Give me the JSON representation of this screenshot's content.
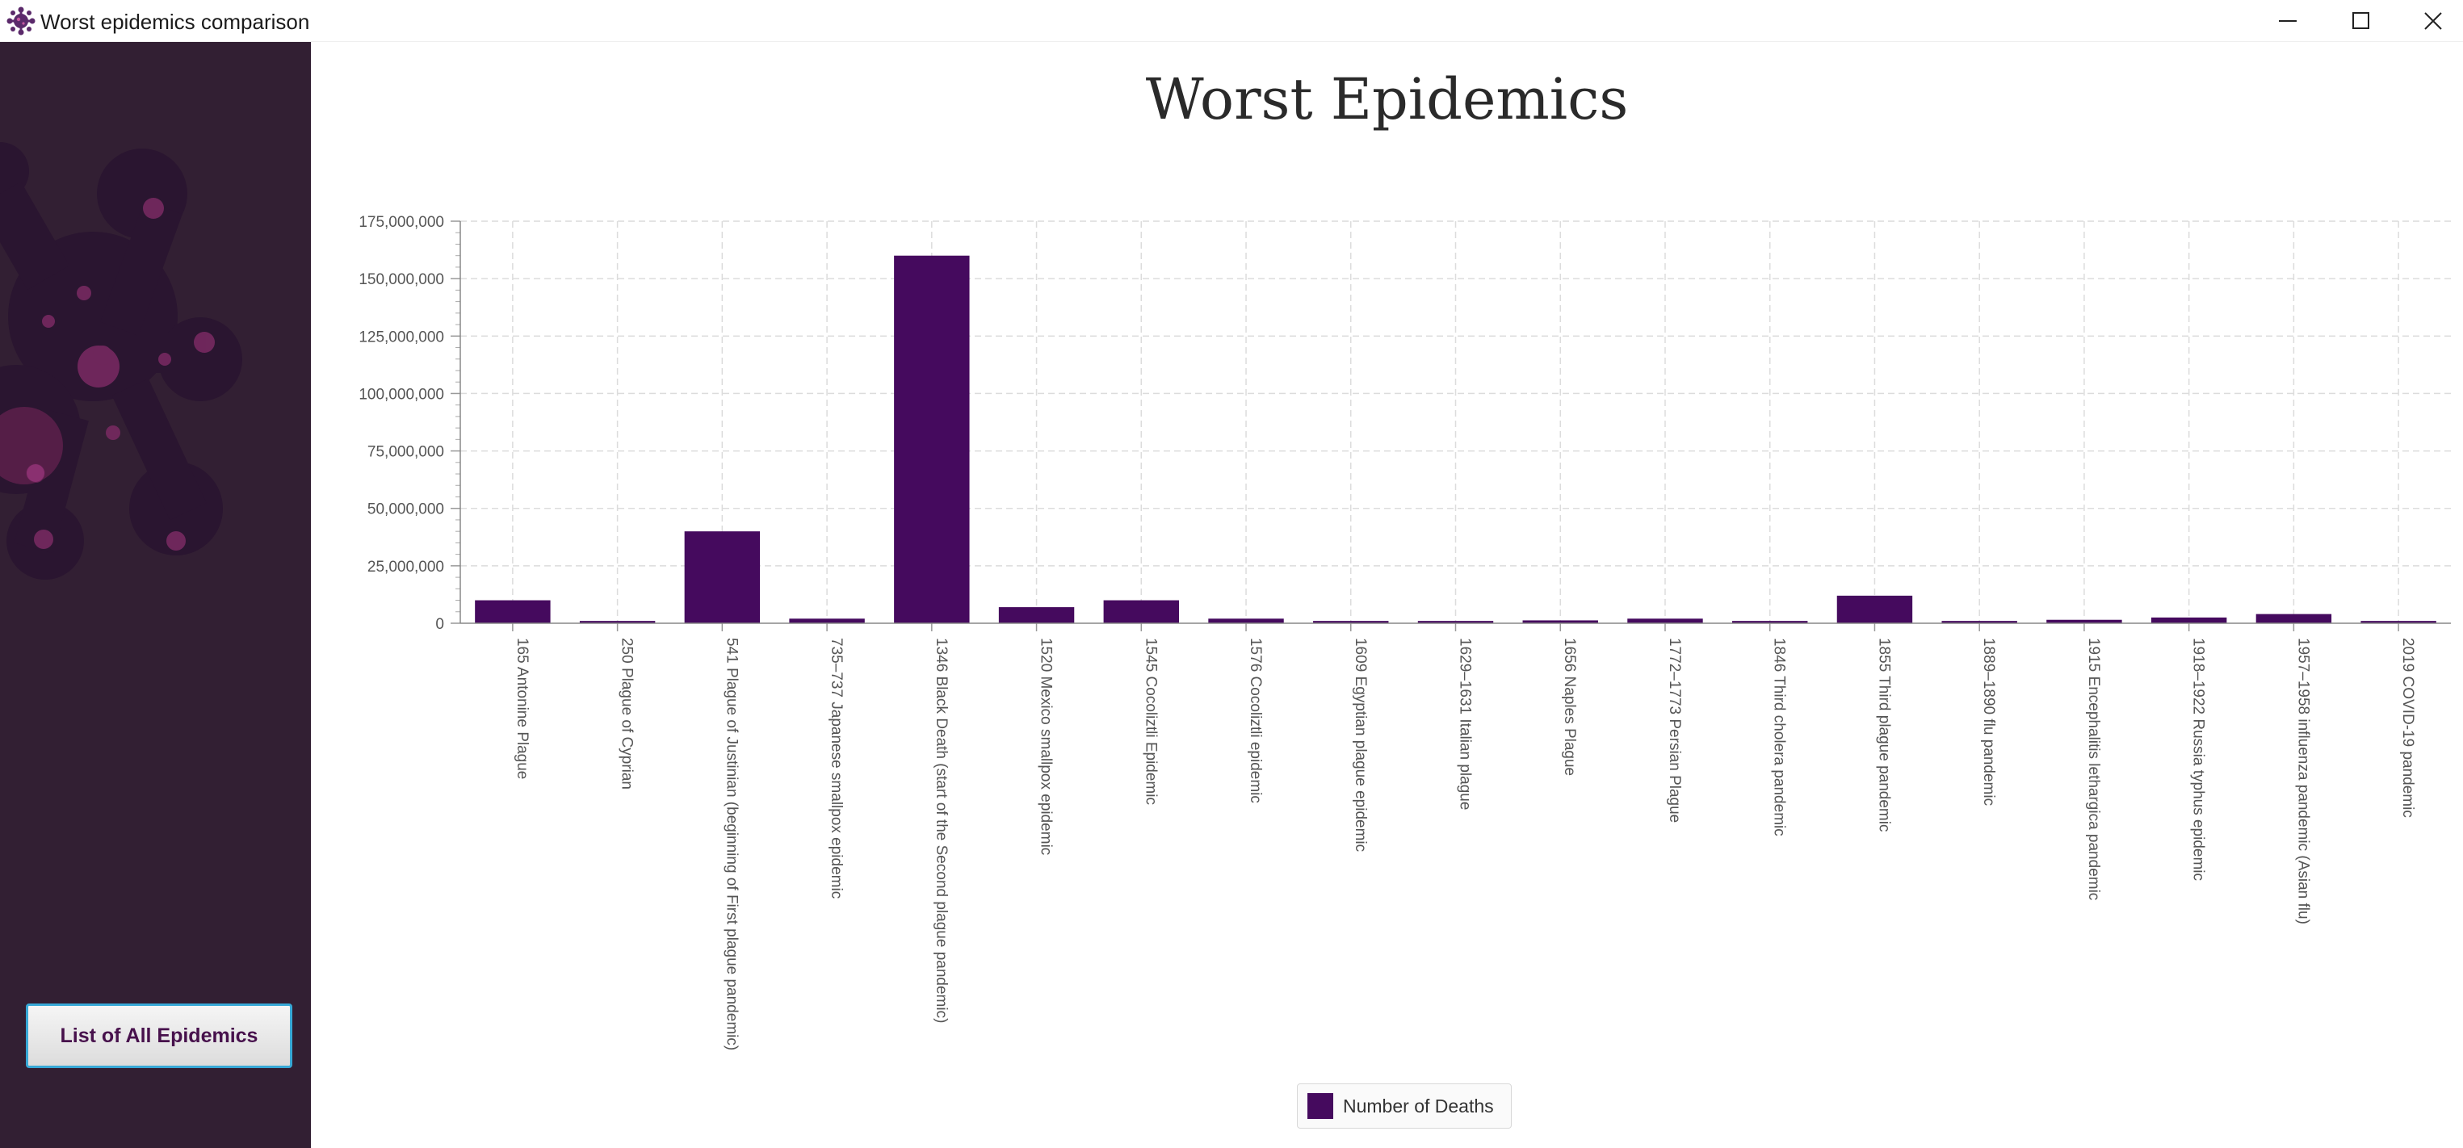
{
  "window": {
    "title": "Worst epidemics comparison",
    "icon": "virus-icon",
    "controls": [
      "minimize-icon",
      "maximize-icon",
      "close-icon"
    ]
  },
  "sidebar": {
    "button_label": "List of All Epidemics",
    "background_color": "#321f33",
    "art": "virus-illustration"
  },
  "colors": {
    "bar": "#450a5e",
    "button_border": "#37a8d6",
    "button_text": "#47114c"
  },
  "chart_data": {
    "type": "bar",
    "title": "Worst Epidemics",
    "xlabel": "",
    "ylabel": "",
    "ylim": [
      0,
      175000000
    ],
    "yticks": [
      "0",
      "25,000,000",
      "50,000,000",
      "75,000,000",
      "100,000,000",
      "125,000,000",
      "150,000,000",
      "175,000,000"
    ],
    "grid": true,
    "legend_position": "bottom",
    "categories": [
      "165 Antonine Plague",
      "250 Plague of Cyprian",
      "541 Plague of Justinian (beginning of First plague pandemic)",
      "735–737 Japanese smallpox epidemic",
      "1346 Black Death (start of the Second plague pandemic)",
      "1520 Mexico smallpox epidemic",
      "1545 Cocoliztli Epidemic",
      "1576 Cocoliztli epidemic",
      "1609 Egyptian plague epidemic",
      "1629–1631 Italian plague",
      "1656 Naples Plague",
      "1772–1773 Persian Plague",
      "1846 Third cholera pandemic",
      "1855 Third plague pandemic",
      "1889–1890 flu pandemic",
      "1915 Encephalitis lethargica pandemic",
      "1918–1922 Russia typhus epidemic",
      "1957–1958 influenza pandemic (Asian flu)",
      "2019 COVID-19 pandemic"
    ],
    "series": [
      {
        "name": "Number of Deaths",
        "values": [
          10000000,
          1000000,
          40000000,
          2000000,
          160000000,
          7000000,
          10000000,
          2000000,
          1000000,
          1000000,
          1250000,
          2000000,
          1000000,
          12000000,
          1000000,
          1500000,
          2500000,
          4000000,
          1000000
        ]
      }
    ]
  }
}
